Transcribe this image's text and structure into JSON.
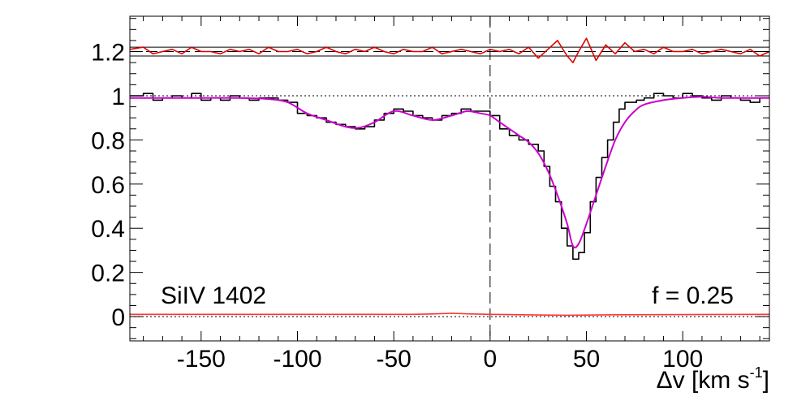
{
  "chart_data": {
    "type": "line",
    "title": "",
    "xlabel": "Δv [km s",
    "xlabel_sup": "-1",
    "xlabel_close": "]",
    "ylabel": "",
    "xlim": [
      -187,
      145
    ],
    "ylim": [
      -0.11,
      1.36
    ],
    "x_ticks": [
      -150,
      -100,
      -50,
      0,
      50,
      100
    ],
    "x_tick_labels": [
      "-150",
      "-100",
      "-50",
      "0",
      "50",
      "100"
    ],
    "y_ticks": [
      0,
      0.2,
      0.4,
      0.6,
      0.8,
      1,
      1.2
    ],
    "y_tick_labels": [
      "0",
      "0.2",
      "0.4",
      "0.6",
      "0.8",
      "1",
      "1.2"
    ],
    "annotations": {
      "ion": "SiIV 1402",
      "covering": "f = 0.25"
    },
    "reference_lines": {
      "continuum": 1.0,
      "zero": 0.0,
      "zero_velocity": 0,
      "residual_offset": 1.2,
      "residual_band": [
        1.18,
        1.22
      ]
    },
    "colors": {
      "data": "#000000",
      "model": "#cc00cc",
      "residual": "#dd0000",
      "error": "#ff3333"
    },
    "series": [
      {
        "role": "data",
        "style": "step",
        "x": [
          -187,
          -180,
          -175,
          -170,
          -165,
          -160,
          -155,
          -150,
          -145,
          -140,
          -135,
          -130,
          -125,
          -120,
          -115,
          -110,
          -105,
          -100,
          -95,
          -90,
          -85,
          -80,
          -75,
          -70,
          -65,
          -60,
          -55,
          -50,
          -45,
          -40,
          -35,
          -30,
          -25,
          -20,
          -15,
          -10,
          -5,
          0,
          5,
          10,
          15,
          20,
          25,
          28,
          31,
          34,
          37,
          40,
          43,
          46,
          49,
          52,
          55,
          58,
          61,
          64,
          67,
          70,
          73,
          76,
          80,
          85,
          90,
          95,
          100,
          105,
          110,
          115,
          120,
          125,
          130,
          135,
          140,
          145
        ],
        "y": [
          1.0,
          1.01,
          0.98,
          0.99,
          1.0,
          0.99,
          1.01,
          0.98,
          0.99,
          0.98,
          1.0,
          0.99,
          0.98,
          0.99,
          0.99,
          0.98,
          0.97,
          0.92,
          0.91,
          0.9,
          0.88,
          0.87,
          0.86,
          0.85,
          0.86,
          0.89,
          0.92,
          0.94,
          0.93,
          0.91,
          0.9,
          0.89,
          0.91,
          0.92,
          0.94,
          0.93,
          0.93,
          0.91,
          0.85,
          0.82,
          0.8,
          0.78,
          0.75,
          0.68,
          0.59,
          0.52,
          0.4,
          0.32,
          0.26,
          0.29,
          0.38,
          0.52,
          0.63,
          0.72,
          0.8,
          0.88,
          0.94,
          0.97,
          0.97,
          0.98,
          0.99,
          1.01,
          1.0,
          0.99,
          1.01,
          1.0,
          0.99,
          0.98,
          1.0,
          0.99,
          0.98,
          0.97,
          0.99,
          0.99
        ]
      },
      {
        "role": "model",
        "style": "smooth",
        "x": [
          -187,
          -170,
          -150,
          -130,
          -115,
          -105,
          -95,
          -85,
          -75,
          -68,
          -60,
          -50,
          -40,
          -30,
          -20,
          -12,
          -5,
          0,
          5,
          10,
          15,
          20,
          25,
          30,
          35,
          40,
          43,
          46,
          50,
          55,
          60,
          65,
          70,
          75,
          80,
          90,
          100,
          110,
          120,
          130,
          145
        ],
        "y": [
          0.99,
          0.99,
          0.99,
          0.99,
          0.985,
          0.97,
          0.92,
          0.89,
          0.86,
          0.855,
          0.88,
          0.93,
          0.91,
          0.89,
          0.91,
          0.93,
          0.92,
          0.91,
          0.88,
          0.85,
          0.82,
          0.79,
          0.74,
          0.66,
          0.55,
          0.42,
          0.32,
          0.33,
          0.42,
          0.55,
          0.68,
          0.8,
          0.88,
          0.93,
          0.96,
          0.98,
          0.99,
          0.995,
          0.99,
          0.99,
          0.99
        ]
      },
      {
        "role": "residual",
        "style": "line",
        "x": [
          -187,
          -180,
          -175,
          -170,
          -165,
          -160,
          -155,
          -150,
          -145,
          -140,
          -135,
          -130,
          -125,
          -120,
          -115,
          -110,
          -105,
          -100,
          -95,
          -90,
          -85,
          -80,
          -75,
          -70,
          -65,
          -60,
          -55,
          -50,
          -45,
          -40,
          -35,
          -30,
          -25,
          -20,
          -15,
          -10,
          -5,
          0,
          5,
          10,
          15,
          20,
          25,
          30,
          35,
          40,
          43,
          46,
          50,
          55,
          60,
          65,
          70,
          75,
          80,
          85,
          90,
          95,
          100,
          105,
          110,
          115,
          120,
          125,
          130,
          135,
          140,
          145
        ],
        "y": [
          1.21,
          1.22,
          1.19,
          1.2,
          1.21,
          1.19,
          1.22,
          1.2,
          1.2,
          1.19,
          1.21,
          1.2,
          1.21,
          1.19,
          1.22,
          1.2,
          1.2,
          1.21,
          1.19,
          1.2,
          1.22,
          1.2,
          1.19,
          1.21,
          1.2,
          1.22,
          1.2,
          1.19,
          1.21,
          1.2,
          1.2,
          1.22,
          1.19,
          1.2,
          1.21,
          1.2,
          1.19,
          1.21,
          1.2,
          1.21,
          1.19,
          1.22,
          1.17,
          1.21,
          1.25,
          1.18,
          1.15,
          1.2,
          1.26,
          1.16,
          1.23,
          1.19,
          1.24,
          1.2,
          1.21,
          1.19,
          1.22,
          1.2,
          1.2,
          1.21,
          1.19,
          1.2,
          1.21,
          1.2,
          1.19,
          1.21,
          1.18,
          1.2
        ]
      },
      {
        "role": "error",
        "style": "line",
        "x": [
          -187,
          -40,
          -30,
          -20,
          -10,
          0,
          20,
          40,
          60,
          145
        ],
        "y": [
          0.01,
          0.01,
          0.012,
          0.015,
          0.012,
          0.01,
          0.008,
          0.006,
          0.008,
          0.01
        ]
      }
    ]
  }
}
